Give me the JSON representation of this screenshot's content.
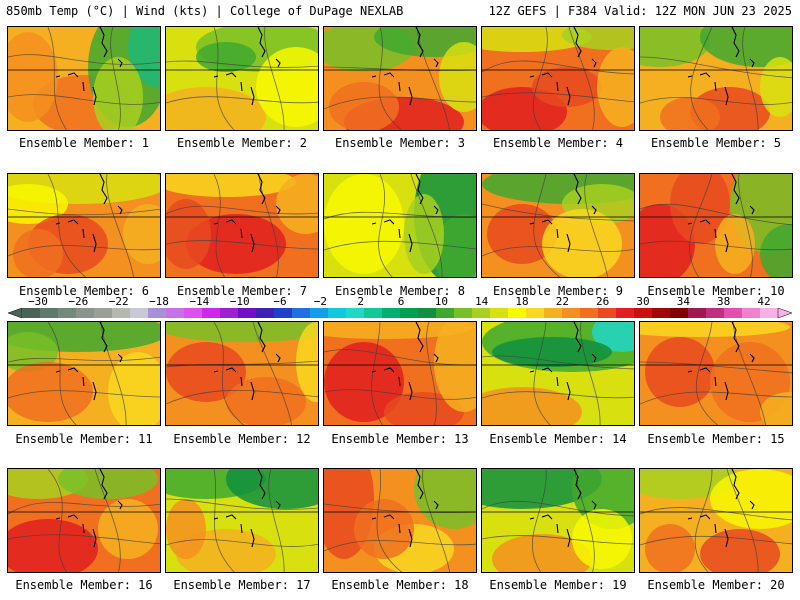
{
  "header": {
    "title_left": "850mb Temp (°C) | Wind (kts) | College of DuPage NEXLAB",
    "title_right": "12Z GEFS | F384 Valid: 12Z MON JUN 23 2025"
  },
  "colorbar": {
    "labels": [
      "−30",
      "−26",
      "−22",
      "−18",
      "−14",
      "−10",
      "−6",
      "−2",
      "2",
      "6",
      "10",
      "14",
      "18",
      "22",
      "26",
      "30",
      "34",
      "38",
      "42"
    ],
    "colors": [
      "#4a6358",
      "#5e7a6d",
      "#74897e",
      "#8a938c",
      "#9aa098",
      "#b4b8b0",
      "#c8c8d6",
      "#a890d8",
      "#c870e8",
      "#e050f0",
      "#d028e8",
      "#a020d0",
      "#7010c0",
      "#4020b0",
      "#2040c8",
      "#2070e0",
      "#10a0e8",
      "#10c8e0",
      "#20d8c8",
      "#10c898",
      "#00b070",
      "#00a050",
      "#109040",
      "#40a830",
      "#78c028",
      "#a8d020",
      "#d8e010",
      "#f8f800",
      "#f8d820",
      "#f4b020",
      "#f49020",
      "#f07020",
      "#e84a20",
      "#e02020",
      "#c81010",
      "#a00808",
      "#800000",
      "#a01850",
      "#c03080",
      "#e050b0",
      "#f080d0",
      "#f8b0e8"
    ]
  },
  "members": [
    {
      "label": "Ensemble Member: 1"
    },
    {
      "label": "Ensemble Member: 2"
    },
    {
      "label": "Ensemble Member: 3"
    },
    {
      "label": "Ensemble Member: 4"
    },
    {
      "label": "Ensemble Member: 5"
    },
    {
      "label": "Ensemble Member: 6"
    },
    {
      "label": "Ensemble Member: 7"
    },
    {
      "label": "Ensemble Member: 8"
    },
    {
      "label": "Ensemble Member: 9"
    },
    {
      "label": "Ensemble Member: 10"
    },
    {
      "label": "Ensemble Member: 11"
    },
    {
      "label": "Ensemble Member: 12"
    },
    {
      "label": "Ensemble Member: 13"
    },
    {
      "label": "Ensemble Member: 14"
    },
    {
      "label": "Ensemble Member: 15"
    },
    {
      "label": "Ensemble Member: 16"
    },
    {
      "label": "Ensemble Member: 17"
    },
    {
      "label": "Ensemble Member: 18"
    },
    {
      "label": "Ensemble Member: 19"
    },
    {
      "label": "Ensemble Member: 20"
    }
  ]
}
